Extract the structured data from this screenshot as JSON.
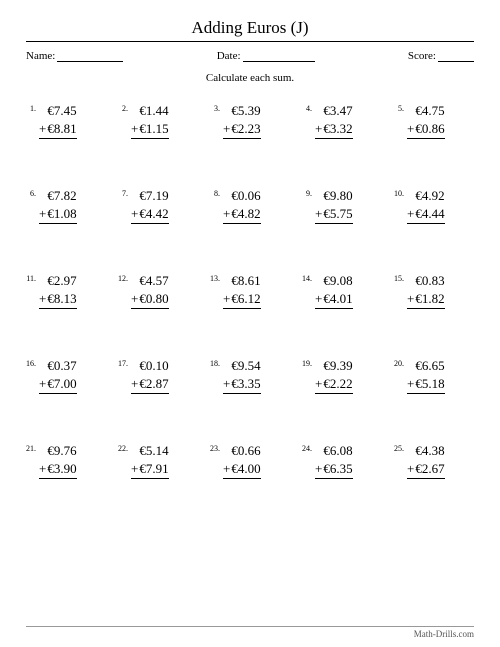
{
  "title": "Adding Euros (J)",
  "labels": {
    "name": "Name:",
    "date": "Date:",
    "score": "Score:"
  },
  "instructions": "Calculate each sum.",
  "currency": "€",
  "operator": "+",
  "footer": {
    "left": "",
    "right": "Math-Drills.com"
  },
  "colors": {
    "background": "#ffffff",
    "text": "#000000",
    "rule": "#000000"
  },
  "blank_widths": {
    "name": 66,
    "date": 72,
    "score": 36
  },
  "problems": [
    {
      "n": "1.",
      "a": "7.45",
      "b": "8.81"
    },
    {
      "n": "2.",
      "a": "1.44",
      "b": "1.15"
    },
    {
      "n": "3.",
      "a": "5.39",
      "b": "2.23"
    },
    {
      "n": "4.",
      "a": "3.47",
      "b": "3.32"
    },
    {
      "n": "5.",
      "a": "4.75",
      "b": "0.86"
    },
    {
      "n": "6.",
      "a": "7.82",
      "b": "1.08"
    },
    {
      "n": "7.",
      "a": "7.19",
      "b": "4.42"
    },
    {
      "n": "8.",
      "a": "0.06",
      "b": "4.82"
    },
    {
      "n": "9.",
      "a": "9.80",
      "b": "5.75"
    },
    {
      "n": "10.",
      "a": "4.92",
      "b": "4.44"
    },
    {
      "n": "11.",
      "a": "2.97",
      "b": "8.13"
    },
    {
      "n": "12.",
      "a": "4.57",
      "b": "0.80"
    },
    {
      "n": "13.",
      "a": "8.61",
      "b": "6.12"
    },
    {
      "n": "14.",
      "a": "9.08",
      "b": "4.01"
    },
    {
      "n": "15.",
      "a": "0.83",
      "b": "1.82"
    },
    {
      "n": "16.",
      "a": "0.37",
      "b": "7.00"
    },
    {
      "n": "17.",
      "a": "0.10",
      "b": "2.87"
    },
    {
      "n": "18.",
      "a": "9.54",
      "b": "3.35"
    },
    {
      "n": "19.",
      "a": "9.39",
      "b": "2.22"
    },
    {
      "n": "20.",
      "a": "6.65",
      "b": "5.18"
    },
    {
      "n": "21.",
      "a": "9.76",
      "b": "3.90"
    },
    {
      "n": "22.",
      "a": "5.14",
      "b": "7.91"
    },
    {
      "n": "23.",
      "a": "0.66",
      "b": "4.00"
    },
    {
      "n": "24.",
      "a": "6.08",
      "b": "6.35"
    },
    {
      "n": "25.",
      "a": "4.38",
      "b": "2.67"
    }
  ]
}
